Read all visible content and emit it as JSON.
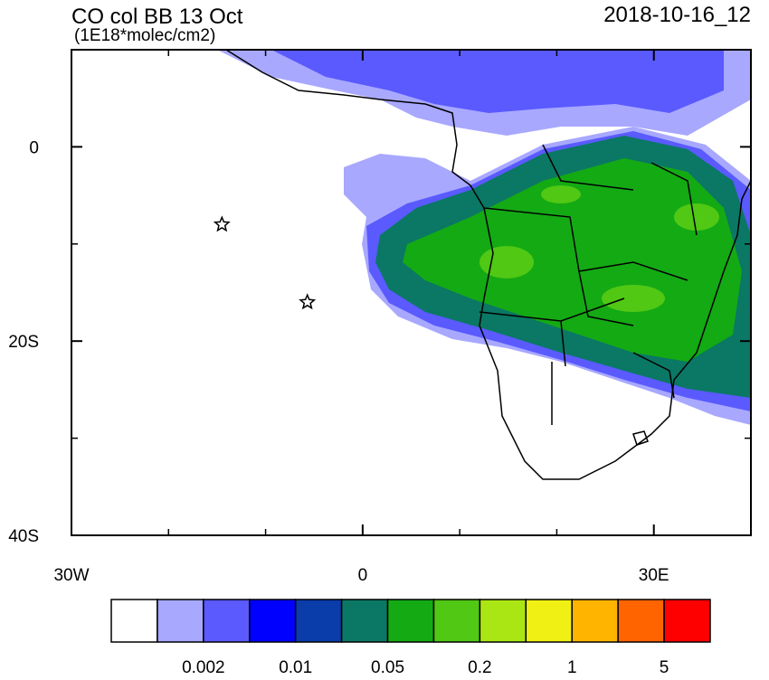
{
  "header": {
    "title": "CO col BB 13 Oct",
    "units": "(1E18*molec/cm2)",
    "date": "2018-10-16_12"
  },
  "map": {
    "xlim": [
      -30,
      40
    ],
    "ylim": [
      -40,
      10
    ],
    "xticks": [
      {
        "value": -30,
        "label": "30W"
      },
      0,
      {
        "value": 30,
        "label": "30E"
      }
    ],
    "yticks": [
      0,
      {
        "value": -20,
        "label": "20S"
      },
      {
        "value": -40,
        "label": "40S"
      }
    ],
    "xticks_minor": [
      -20,
      -10,
      10,
      20,
      40
    ],
    "yticks_minor": [
      -10,
      -30
    ],
    "markers": [
      {
        "lon": -14.5,
        "lat": -8
      },
      {
        "lon": -5.7,
        "lat": -16
      }
    ]
  },
  "colorbar": {
    "colors": [
      "#ffffff",
      "#a8a8ff",
      "#5a5aff",
      "#0000ff",
      "#0a3caa",
      "#0a7864",
      "#14aa14",
      "#50c814",
      "#aae614",
      "#f0f014",
      "#ffb400",
      "#ff6400",
      "#ff0000"
    ],
    "labels": [
      "0.002",
      "0.01",
      "0.05",
      "0.2",
      "1",
      "5"
    ]
  }
}
